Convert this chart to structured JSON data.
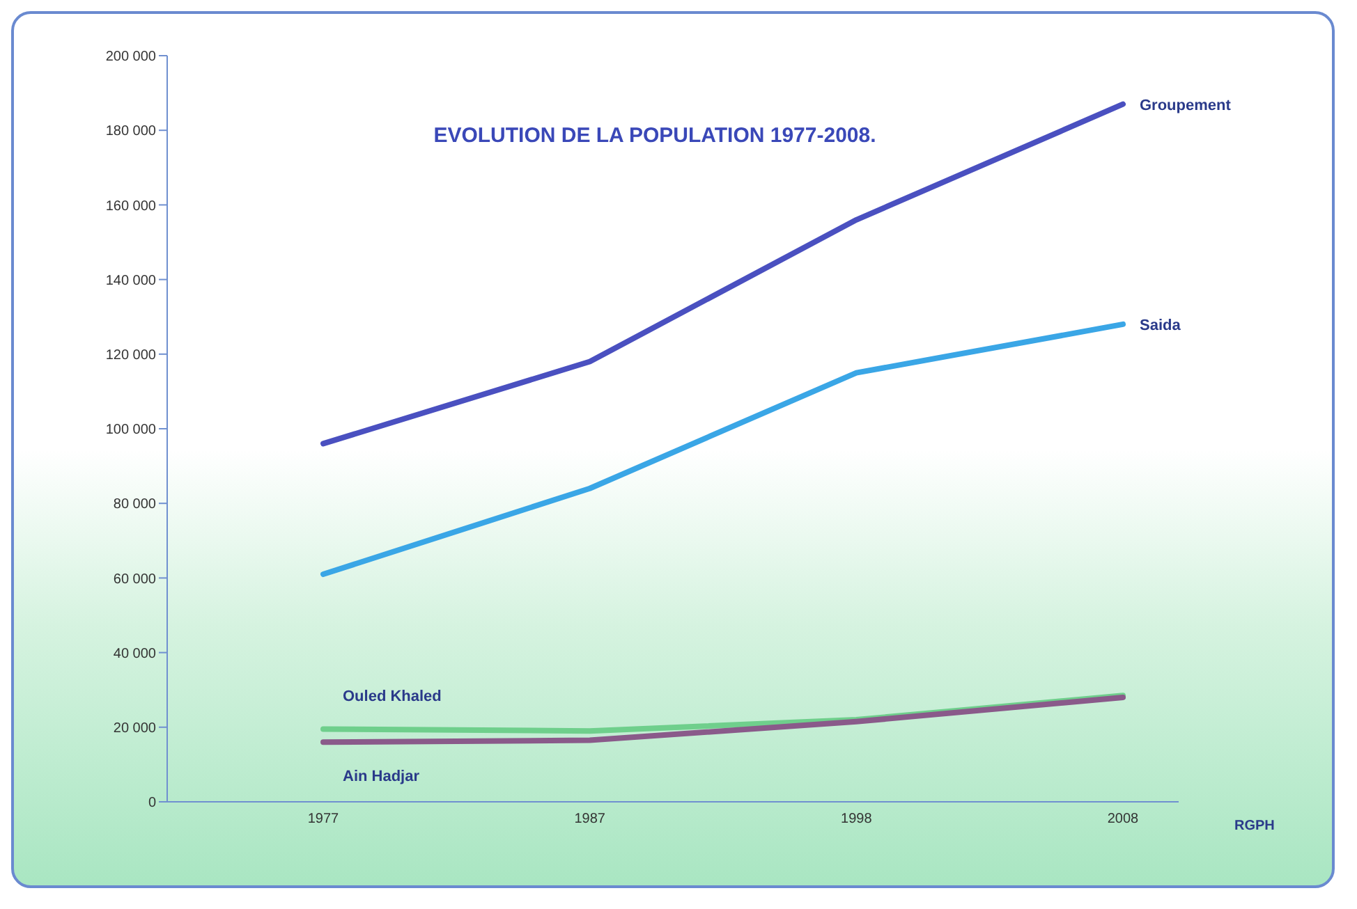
{
  "chart_data": {
    "type": "line",
    "title": "EVOLUTION DE LA POPULATION 1977-2008.",
    "xlabel": "RGPH",
    "categories": [
      "1977",
      "1987",
      "1998",
      "2008"
    ],
    "series": [
      {
        "name": "Groupement",
        "color": "#4a50c0",
        "values": [
          96000,
          118000,
          156000,
          187000
        ]
      },
      {
        "name": "Saida",
        "color": "#3aa6e6",
        "values": [
          61000,
          84000,
          115000,
          128000
        ]
      },
      {
        "name": "Ouled Khaled",
        "color": "#6fcf8c",
        "values": [
          19500,
          19000,
          22000,
          28500
        ]
      },
      {
        "name": "Ain Hadjar",
        "color": "#8a5a8a",
        "values": [
          16000,
          16500,
          21500,
          28000
        ]
      }
    ],
    "ylim": [
      0,
      200000
    ],
    "yticks": [
      {
        "value": 0,
        "label": "0"
      },
      {
        "value": 20000,
        "label": "20 000"
      },
      {
        "value": 40000,
        "label": "40 000"
      },
      {
        "value": 60000,
        "label": "60 000"
      },
      {
        "value": 80000,
        "label": "80 000"
      },
      {
        "value": 100000,
        "label": "100 000"
      },
      {
        "value": 120000,
        "label": "120 000"
      },
      {
        "value": 140000,
        "label": "140 000"
      },
      {
        "value": 160000,
        "label": "160 000"
      },
      {
        "value": 180000,
        "label": "180 000"
      },
      {
        "value": 200000,
        "label": "200 000"
      }
    ],
    "grid": false,
    "legend": false,
    "marker": "none",
    "line_style": "solid"
  }
}
